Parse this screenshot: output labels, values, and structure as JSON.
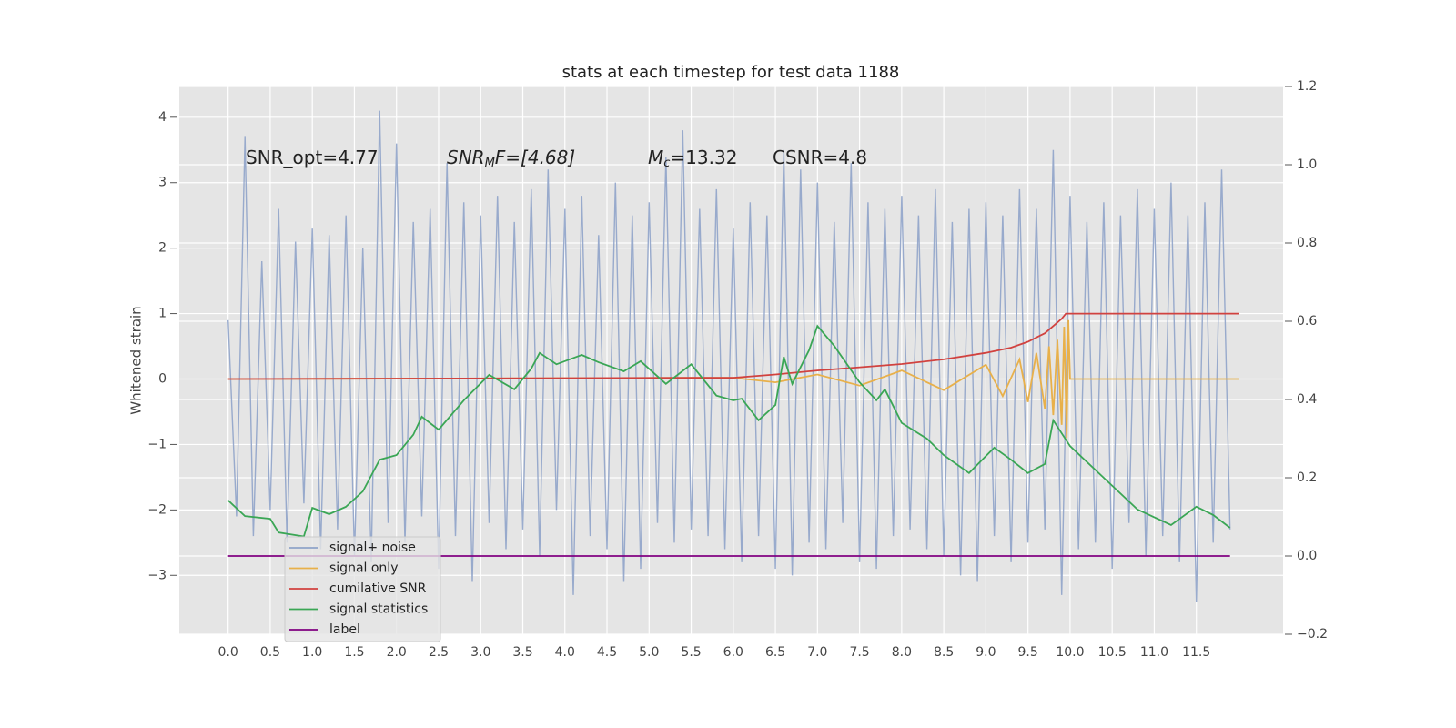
{
  "chart_data": {
    "type": "line",
    "title": "stats at each timestep for test data 1188",
    "ylabel": "Whitened strain",
    "annotations": [
      {
        "parts": [
          "SNR_opt=4.77"
        ]
      },
      {
        "parts": [
          "SNR",
          "M",
          "F=[4.68]"
        ]
      },
      {
        "parts": [
          "M",
          "c",
          "=13.32"
        ]
      },
      {
        "parts": [
          "CSNR=4.8"
        ]
      }
    ],
    "xlim": [
      -0.58,
      12.53
    ],
    "xticks": [
      {
        "value": 0,
        "label": "0.0"
      },
      0.5,
      {
        "value": 1,
        "label": "1.0"
      },
      1.5,
      {
        "value": 2,
        "label": "2.0"
      },
      2.5,
      {
        "value": 3,
        "label": "3.0"
      },
      3.5,
      {
        "value": 4,
        "label": "4.0"
      },
      4.5,
      {
        "value": 5,
        "label": "5.0"
      },
      5.5,
      {
        "value": 6,
        "label": "6.0"
      },
      6.5,
      {
        "value": 7,
        "label": "7.0"
      },
      7.5,
      {
        "value": 8,
        "label": "8.0"
      },
      8.5,
      {
        "value": 9,
        "label": "9.0"
      },
      9.5,
      {
        "value": 10,
        "label": "10.0"
      },
      10.5,
      {
        "value": 11,
        "label": "11.0"
      },
      11.5
    ],
    "ylim": [
      -3.9,
      4.47
    ],
    "yticks": [
      {
        "value": -3,
        "label": "−3"
      },
      {
        "value": -2,
        "label": "−2"
      },
      {
        "value": -1,
        "label": "−1"
      },
      0,
      1,
      2,
      3,
      4
    ],
    "y2lim": [
      -0.2,
      1.2
    ],
    "y2ticks": [
      {
        "value": -0.2,
        "label": "−0.2"
      },
      {
        "value": 0,
        "label": "0.0"
      },
      0.2,
      0.4,
      0.6,
      0.8,
      {
        "value": 1,
        "label": "1.0"
      },
      1.2
    ],
    "grid": true,
    "legend": "lower left",
    "series": [
      {
        "name": "signal+ noise",
        "color": "#8fa3c9",
        "x": [
          0,
          0.1,
          0.2,
          0.3,
          0.4,
          0.5,
          0.6,
          0.7,
          0.8,
          0.9,
          1,
          1.1,
          1.2,
          1.3,
          1.4,
          1.5,
          1.6,
          1.7,
          1.8,
          1.9,
          2,
          2.1,
          2.2,
          2.3,
          2.4,
          2.5,
          2.6,
          2.7,
          2.8,
          2.9,
          3,
          3.1,
          3.2,
          3.3,
          3.4,
          3.5,
          3.6,
          3.7,
          3.8,
          3.9,
          4,
          4.1,
          4.2,
          4.3,
          4.4,
          4.5,
          4.6,
          4.7,
          4.8,
          4.9,
          5,
          5.1,
          5.2,
          5.3,
          5.4,
          5.5,
          5.6,
          5.7,
          5.8,
          5.9,
          6,
          6.1,
          6.2,
          6.3,
          6.4,
          6.5,
          6.6,
          6.7,
          6.8,
          6.9,
          7,
          7.1,
          7.2,
          7.3,
          7.4,
          7.5,
          7.6,
          7.7,
          7.8,
          7.9,
          8,
          8.1,
          8.2,
          8.3,
          8.4,
          8.5,
          8.6,
          8.7,
          8.8,
          8.9,
          9,
          9.1,
          9.2,
          9.3,
          9.4,
          9.5,
          9.6,
          9.7,
          9.8,
          9.9,
          10,
          10.1,
          10.2,
          10.3,
          10.4,
          10.5,
          10.6,
          10.7,
          10.8,
          10.9,
          11,
          11.1,
          11.2,
          11.3,
          11.4,
          11.5,
          11.6,
          11.7,
          11.8,
          11.9
        ],
        "values": [
          0.9,
          -2.1,
          3.7,
          -2.4,
          1.8,
          -2.0,
          2.6,
          -2.5,
          2.1,
          -1.9,
          2.3,
          -2.6,
          2.2,
          -2.3,
          2.5,
          -2.7,
          2.0,
          -2.8,
          4.1,
          -2.2,
          3.6,
          -2.5,
          2.4,
          -2.1,
          2.6,
          -2.9,
          3.3,
          -2.4,
          2.7,
          -3.1,
          2.5,
          -2.2,
          2.8,
          -2.6,
          2.4,
          -2.3,
          2.9,
          -2.7,
          3.2,
          -2.0,
          2.6,
          -3.3,
          2.8,
          -2.4,
          2.2,
          -2.6,
          3.0,
          -3.1,
          2.5,
          -2.9,
          2.7,
          -2.2,
          3.4,
          -2.5,
          3.8,
          -2.3,
          2.6,
          -2.4,
          2.9,
          -2.6,
          2.3,
          -2.8,
          2.7,
          -2.4,
          2.5,
          -2.9,
          3.5,
          -3.0,
          3.2,
          -2.5,
          3.0,
          -2.6,
          2.4,
          -2.2,
          3.3,
          -2.8,
          2.7,
          -2.9,
          2.6,
          -2.4,
          2.8,
          -2.3,
          2.5,
          -2.6,
          2.9,
          -2.7,
          2.4,
          -3.0,
          2.6,
          -3.1,
          2.7,
          -2.4,
          2.5,
          -2.8,
          2.9,
          -2.5,
          2.6,
          -2.3,
          3.5,
          -3.3,
          2.8,
          -2.6,
          2.4,
          -2.5,
          2.7,
          -2.9,
          2.5,
          -2.2,
          2.9,
          -2.7,
          2.6,
          -2.4,
          3.0,
          -2.8,
          2.5,
          -3.4,
          2.7,
          -2.5,
          3.2,
          -2.3
        ]
      },
      {
        "name": "signal only",
        "color": "#e8b04a",
        "x": [
          0,
          6.0,
          6.5,
          7.0,
          7.5,
          8.0,
          8.5,
          9.0,
          9.2,
          9.4,
          9.5,
          9.6,
          9.7,
          9.75,
          9.8,
          9.85,
          9.9,
          9.93,
          9.96,
          9.98,
          10.0,
          12.0
        ],
        "values": [
          0,
          0.02,
          -0.05,
          0.07,
          -0.1,
          0.13,
          -0.17,
          0.22,
          -0.26,
          0.3,
          -0.35,
          0.4,
          -0.45,
          0.5,
          -0.55,
          0.6,
          -0.7,
          0.8,
          -0.9,
          0.9,
          0,
          0
        ]
      },
      {
        "name": "cumilative SNR",
        "color": "#d1423f",
        "x": [
          0,
          6,
          6.5,
          7,
          7.5,
          8,
          8.5,
          9,
          9.3,
          9.5,
          9.7,
          9.9,
          9.95,
          12
        ],
        "values": [
          0,
          0.02,
          0.07,
          0.13,
          0.18,
          0.23,
          0.3,
          0.4,
          0.48,
          0.57,
          0.7,
          0.92,
          1.0,
          1.0
        ]
      },
      {
        "name": "signal statistics",
        "color": "#3aa655",
        "axis": "y2",
        "x": [
          0,
          0.2,
          0.5,
          0.6,
          0.9,
          1.0,
          1.2,
          1.4,
          1.6,
          1.8,
          2.0,
          2.2,
          2.3,
          2.5,
          2.8,
          3.1,
          3.4,
          3.6,
          3.7,
          3.9,
          4.2,
          4.4,
          4.7,
          4.9,
          5.2,
          5.5,
          5.8,
          6.0,
          6.1,
          6.3,
          6.5,
          6.6,
          6.7,
          6.9,
          7.0,
          7.2,
          7.5,
          7.7,
          7.8,
          8.0,
          8.3,
          8.5,
          8.8,
          9.1,
          9.3,
          9.5,
          9.7,
          9.8,
          10.0,
          10.4,
          10.8,
          11.2,
          11.5,
          11.7,
          11.9
        ],
        "values": [
          0.142,
          0.102,
          0.095,
          0.06,
          0.05,
          0.123,
          0.107,
          0.126,
          0.165,
          0.246,
          0.258,
          0.31,
          0.356,
          0.323,
          0.398,
          0.463,
          0.426,
          0.479,
          0.519,
          0.49,
          0.514,
          0.495,
          0.472,
          0.498,
          0.44,
          0.49,
          0.41,
          0.398,
          0.402,
          0.347,
          0.386,
          0.509,
          0.44,
          0.526,
          0.588,
          0.537,
          0.444,
          0.398,
          0.426,
          0.34,
          0.3,
          0.258,
          0.212,
          0.277,
          0.246,
          0.212,
          0.235,
          0.347,
          0.281,
          0.2,
          0.119,
          0.079,
          0.126,
          0.105,
          0.072
        ]
      },
      {
        "name": "label",
        "color": "#800080",
        "axis": "y2",
        "x": [
          0,
          11.9
        ],
        "values": [
          0,
          0
        ]
      }
    ]
  }
}
